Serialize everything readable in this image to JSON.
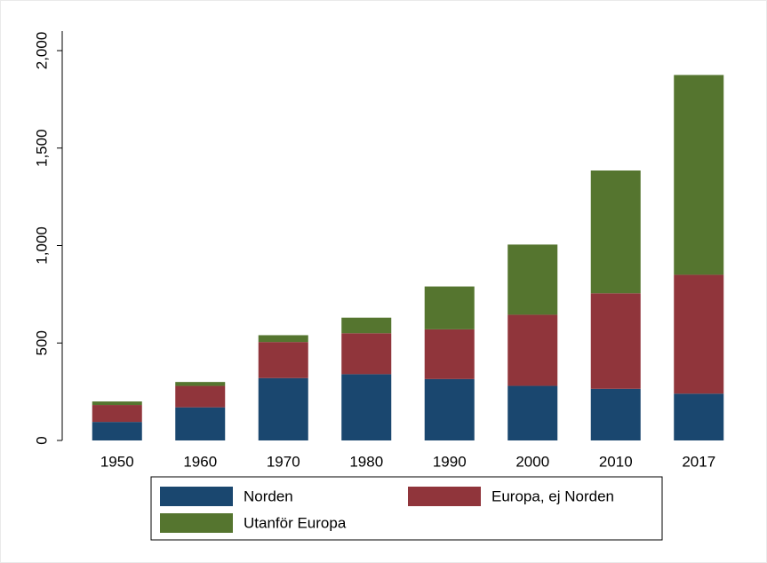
{
  "chart_data": {
    "type": "stacked_bar",
    "categories": [
      "1950",
      "1960",
      "1970",
      "1980",
      "1990",
      "2000",
      "2010",
      "2017"
    ],
    "series": [
      {
        "name": "Norden",
        "color": "#1a476f",
        "values": [
          95,
          170,
          320,
          340,
          315,
          280,
          265,
          240
        ]
      },
      {
        "name": "Europa, ej Norden",
        "color": "#90353b",
        "values": [
          87,
          110,
          185,
          210,
          255,
          365,
          490,
          610
        ]
      },
      {
        "name": "Utanför Europa",
        "color": "#55752f",
        "values": [
          18,
          20,
          35,
          80,
          220,
          360,
          630,
          1025
        ]
      }
    ],
    "ylim": [
      0,
      2000
    ],
    "yticks": [
      0,
      500,
      {
        "value": 1000,
        "label": "1,000"
      },
      {
        "value": 1500,
        "label": "1,500"
      },
      {
        "value": 2000,
        "label": "2,000"
      }
    ],
    "legend": "bottom"
  }
}
